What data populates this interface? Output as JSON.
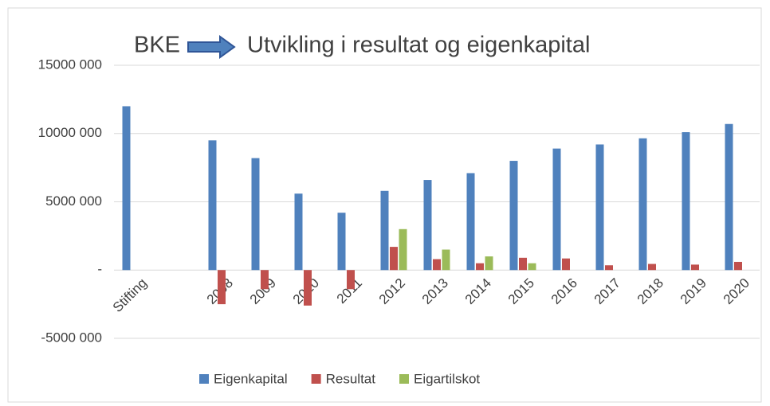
{
  "chart_data": {
    "type": "bar",
    "title_prefix": "BKE",
    "title": "Utvikling i resultat og eigenkapital",
    "categories": [
      "Stifting",
      null,
      "2008",
      "2009",
      "2010",
      "2011",
      "2012",
      "2013",
      "2014",
      "2015",
      "2016",
      "2017",
      "2018",
      "2019",
      "2020"
    ],
    "series": [
      {
        "name": "Eigenkapital",
        "color": "#4f81bd",
        "values": [
          12000000,
          null,
          9500000,
          8200000,
          5600000,
          4200000,
          5800000,
          6600000,
          7100000,
          8000000,
          8900000,
          9200000,
          9650000,
          10100000,
          10700000
        ]
      },
      {
        "name": "Resultat",
        "color": "#c0504d",
        "values": [
          null,
          null,
          -2500000,
          -1400000,
          -2600000,
          -1400000,
          1700000,
          800000,
          500000,
          900000,
          850000,
          350000,
          450000,
          400000,
          600000
        ]
      },
      {
        "name": "Eigartilskot",
        "color": "#9bbb59",
        "values": [
          null,
          null,
          null,
          null,
          null,
          null,
          3000000,
          1500000,
          1000000,
          500000,
          null,
          null,
          null,
          null,
          null
        ]
      }
    ],
    "ylim": [
      -5000000,
      15000000
    ],
    "yticks": [
      {
        "value": -5000000,
        "label": "-5000 000"
      },
      {
        "value": 0,
        "label": "-"
      },
      {
        "value": 5000000,
        "label": "5000 000"
      },
      {
        "value": 10000000,
        "label": "10000 000"
      },
      {
        "value": 15000000,
        "label": "15000 000"
      }
    ],
    "grid": true,
    "legend": "bottom"
  }
}
